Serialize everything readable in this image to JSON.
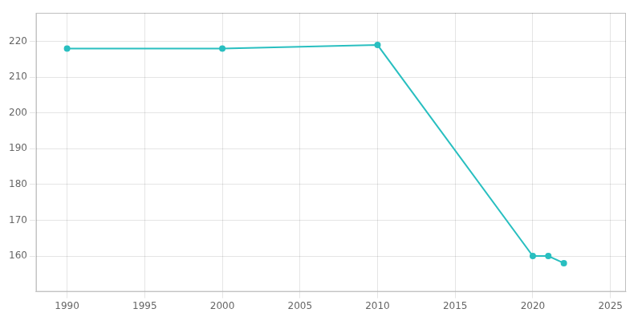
{
  "chart_data": {
    "type": "line",
    "x": [
      1990,
      2000,
      2010,
      2020,
      2021,
      2022
    ],
    "values": [
      218,
      218,
      219,
      160,
      160,
      158
    ],
    "color": "#29bfc0",
    "marker": "circle",
    "xlim": [
      1988,
      2026
    ],
    "ylim": [
      150,
      228
    ],
    "xticks": [
      1990,
      1995,
      2000,
      2005,
      2010,
      2015,
      2020,
      2025
    ],
    "yticks": [
      160,
      170,
      180,
      190,
      200,
      210,
      220
    ],
    "grid": true
  }
}
